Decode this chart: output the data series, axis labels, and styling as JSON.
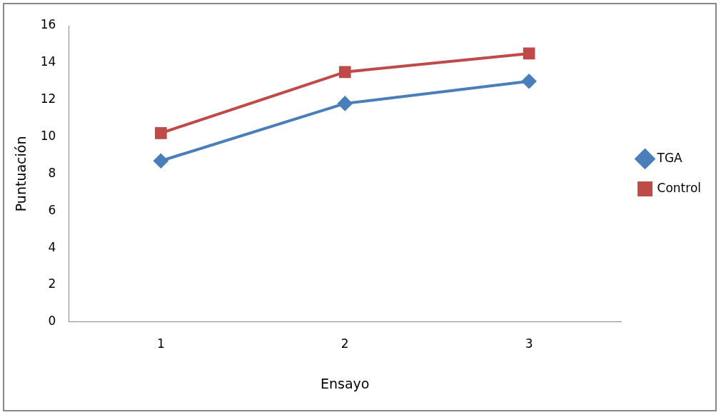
{
  "chart_data": {
    "type": "line",
    "xlabel": "Ensayo",
    "ylabel": "Puntuación",
    "categories": [
      "1",
      "2",
      "3"
    ],
    "series": [
      {
        "name": "TGA",
        "color": "#4a7ebb",
        "marker": "diamond",
        "values": [
          8.7,
          11.8,
          13.0
        ]
      },
      {
        "name": "Control",
        "color": "#be4b48",
        "marker": "square",
        "values": [
          10.2,
          13.5,
          14.5
        ]
      }
    ],
    "ylim": [
      0,
      16
    ],
    "yticks": [
      0,
      2,
      4,
      6,
      8,
      10,
      12,
      14,
      16
    ],
    "grid": false,
    "legend": "right",
    "line_style": "solid"
  }
}
